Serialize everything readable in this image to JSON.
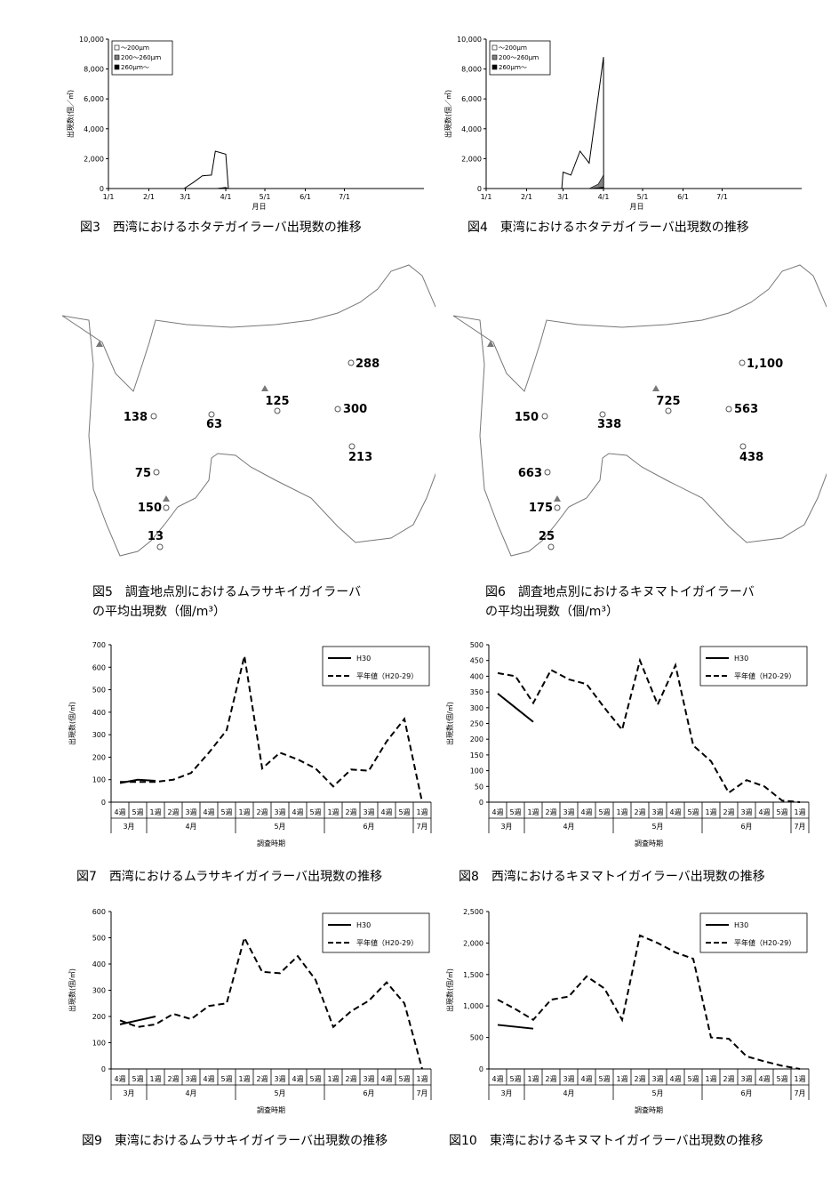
{
  "figures": {
    "fig3": {
      "caption": "図3　西湾におけるホタテガイラーバ出現数の推移",
      "chart_data": {
        "type": "area",
        "title": "",
        "xlabel": "月日",
        "ylabel": "出現数(個／㎥)",
        "ylim": [
          0,
          10000
        ],
        "yticks": [
          "0",
          "2,000",
          "4,000",
          "6,000",
          "8,000",
          "10,000"
        ],
        "xticks": [
          "1/1",
          "2/1",
          "3/1",
          "4/1",
          "5/1",
          "6/1",
          "7/1"
        ],
        "legend": [
          "～200μｍ",
          "200～260μｍ",
          "260μｍ～"
        ],
        "x": [
          "2/28",
          "3/7",
          "3/14",
          "3/21",
          "3/24",
          "4/1",
          "4/3",
          "4/3.1"
        ],
        "series": [
          {
            "name": "～200μｍ",
            "values": [
              0,
              400,
              850,
              900,
              2500,
              2300,
              0,
              0
            ]
          },
          {
            "name": "200～260μｍ",
            "values": [
              0,
              0,
              0,
              0,
              0,
              80,
              0,
              0
            ]
          },
          {
            "name": "260μｍ～",
            "values": [
              0,
              0,
              0,
              0,
              0,
              60,
              0,
              0
            ]
          }
        ]
      }
    },
    "fig4": {
      "caption": "図4　東湾におけるホタテガイラーバ出現数の推移",
      "chart_data": {
        "type": "area",
        "title": "",
        "xlabel": "月日",
        "ylabel": "出現数(個／㎥)",
        "ylim": [
          0,
          10000
        ],
        "yticks": [
          "0",
          "2,000",
          "4,000",
          "6,000",
          "8,000",
          "10,000"
        ],
        "xticks": [
          "1/1",
          "2/1",
          "3/1",
          "4/1",
          "5/1",
          "6/1",
          "7/1"
        ],
        "legend": [
          "～200μｍ",
          "200～260μｍ",
          "260μｍ～"
        ],
        "x": [
          "2/28",
          "3/1",
          "3/7",
          "3/14",
          "3/21",
          "3/28",
          "4/1",
          "4/1.1"
        ],
        "series": [
          {
            "name": "～200μｍ",
            "values": [
              0,
              1100,
              900,
              2500,
              1700,
              6200,
              8800,
              0
            ]
          },
          {
            "name": "200～260μｍ",
            "values": [
              0,
              0,
              0,
              0,
              0,
              300,
              900,
              0
            ]
          },
          {
            "name": "260μｍ～",
            "values": [
              0,
              0,
              0,
              0,
              0,
              50,
              100,
              0
            ]
          }
        ]
      }
    },
    "fig5": {
      "caption": "図5　調査地点別におけるムラサキイガイラーバ\nの平均出現数（個/m³）",
      "stations": [
        {
          "value": "288"
        },
        {
          "value": "125"
        },
        {
          "value": "300"
        },
        {
          "value": "213"
        },
        {
          "value": "138"
        },
        {
          "value": "63"
        },
        {
          "value": "75"
        },
        {
          "value": "150"
        },
        {
          "value": "13"
        }
      ]
    },
    "fig6": {
      "caption": "図6　調査地点別におけるキヌマトイガイラーバ\nの平均出現数（個/m³）",
      "stations": [
        {
          "value": "1,100"
        },
        {
          "value": "725"
        },
        {
          "value": "563"
        },
        {
          "value": "438"
        },
        {
          "value": "150"
        },
        {
          "value": "338"
        },
        {
          "value": "663"
        },
        {
          "value": "175"
        },
        {
          "value": "25"
        }
      ]
    },
    "fig7": {
      "caption": "図7　西湾におけるムラサキイガイラーバ出現数の推移",
      "chart_data": {
        "type": "line",
        "xlabel": "調査時期",
        "ylabel": "出現数(個/㎥)",
        "ylim": [
          0,
          700
        ],
        "yticks": [
          "0",
          "100",
          "200",
          "300",
          "400",
          "500",
          "600",
          "700"
        ],
        "weeks": [
          "4週",
          "5週",
          "1週",
          "2週",
          "3週",
          "4週",
          "5週",
          "1週",
          "2週",
          "3週",
          "4週",
          "5週",
          "1週",
          "2週",
          "3週",
          "4週",
          "5週",
          "1週"
        ],
        "months": [
          "3月",
          "4月",
          "5月",
          "6月",
          "7月"
        ],
        "series": [
          {
            "name": "H30",
            "values": [
              85,
              100,
              95
            ]
          },
          {
            "name": "平年値（H20-29）",
            "values": [
              90,
              90,
              90,
              100,
              130,
              220,
              320,
              650,
              150,
              220,
              190,
              150,
              70,
              145,
              140,
              270,
              370,
              0
            ]
          }
        ]
      }
    },
    "fig8": {
      "caption": "図8　西湾におけるキヌマトイガイラーバ出現数の推移",
      "chart_data": {
        "type": "line",
        "xlabel": "調査時期",
        "ylabel": "出現数(個/㎥)",
        "ylim": [
          0,
          500
        ],
        "yticks": [
          "0",
          "50",
          "100",
          "150",
          "200",
          "250",
          "300",
          "350",
          "400",
          "450",
          "500"
        ],
        "weeks": [
          "4週",
          "5週",
          "1週",
          "2週",
          "3週",
          "4週",
          "5週",
          "1週",
          "2週",
          "3週",
          "4週",
          "5週",
          "1週",
          "2週",
          "3週",
          "4週",
          "5週",
          "1週"
        ],
        "months": [
          "3月",
          "4月",
          "5月",
          "6月",
          "7月"
        ],
        "series": [
          {
            "name": "H30",
            "values": [
              345,
              300,
              255
            ]
          },
          {
            "name": "平年値（H20-29）",
            "values": [
              410,
              400,
              315,
              420,
              390,
              375,
              300,
              230,
              450,
              310,
              435,
              180,
              130,
              30,
              70,
              50,
              5,
              0
            ]
          }
        ]
      }
    },
    "fig9": {
      "caption": "図9　東湾におけるムラサキイガイラーバ出現数の推移",
      "chart_data": {
        "type": "line",
        "xlabel": "調査時期",
        "ylabel": "出現数(個/㎥)",
        "ylim": [
          0,
          600
        ],
        "yticks": [
          "0",
          "100",
          "200",
          "300",
          "400",
          "500",
          "600"
        ],
        "weeks": [
          "4週",
          "5週",
          "1週",
          "2週",
          "3週",
          "4週",
          "5週",
          "1週",
          "2週",
          "3週",
          "4週",
          "5週",
          "1週",
          "2週",
          "3週",
          "4週",
          "5週",
          "1週"
        ],
        "months": [
          "3月",
          "4月",
          "5月",
          "6月",
          "7月"
        ],
        "series": [
          {
            "name": "H30",
            "values": [
              170,
              185,
              200
            ]
          },
          {
            "name": "平年値（H20-29）",
            "values": [
              185,
              160,
              170,
              210,
              190,
              240,
              250,
              500,
              370,
              365,
              430,
              340,
              160,
              220,
              260,
              330,
              250,
              0
            ]
          }
        ]
      }
    },
    "fig10": {
      "caption": "図10　東湾におけるキヌマトイガイラーバ出現数の推移",
      "chart_data": {
        "type": "line",
        "xlabel": "調査時期",
        "ylabel": "出現数(個/㎥)",
        "ylim": [
          0,
          2500
        ],
        "yticks": [
          "0",
          "500",
          "1,000",
          "1,500",
          "2,000",
          "2,500"
        ],
        "weeks": [
          "4週",
          "5週",
          "1週",
          "2週",
          "3週",
          "4週",
          "5週",
          "1週",
          "2週",
          "3週",
          "4週",
          "5週",
          "1週",
          "2週",
          "3週",
          "4週",
          "5週",
          "1週"
        ],
        "months": [
          "3月",
          "4月",
          "5月",
          "6月",
          "7月"
        ],
        "series": [
          {
            "name": "H30",
            "values": [
              700,
              670,
              640
            ]
          },
          {
            "name": "平年値（H20-29）",
            "values": [
              1100,
              950,
              780,
              1100,
              1150,
              1470,
              1280,
              780,
              2120,
              2000,
              1850,
              1750,
              500,
              480,
              200,
              120,
              50,
              0
            ]
          }
        ]
      }
    }
  }
}
